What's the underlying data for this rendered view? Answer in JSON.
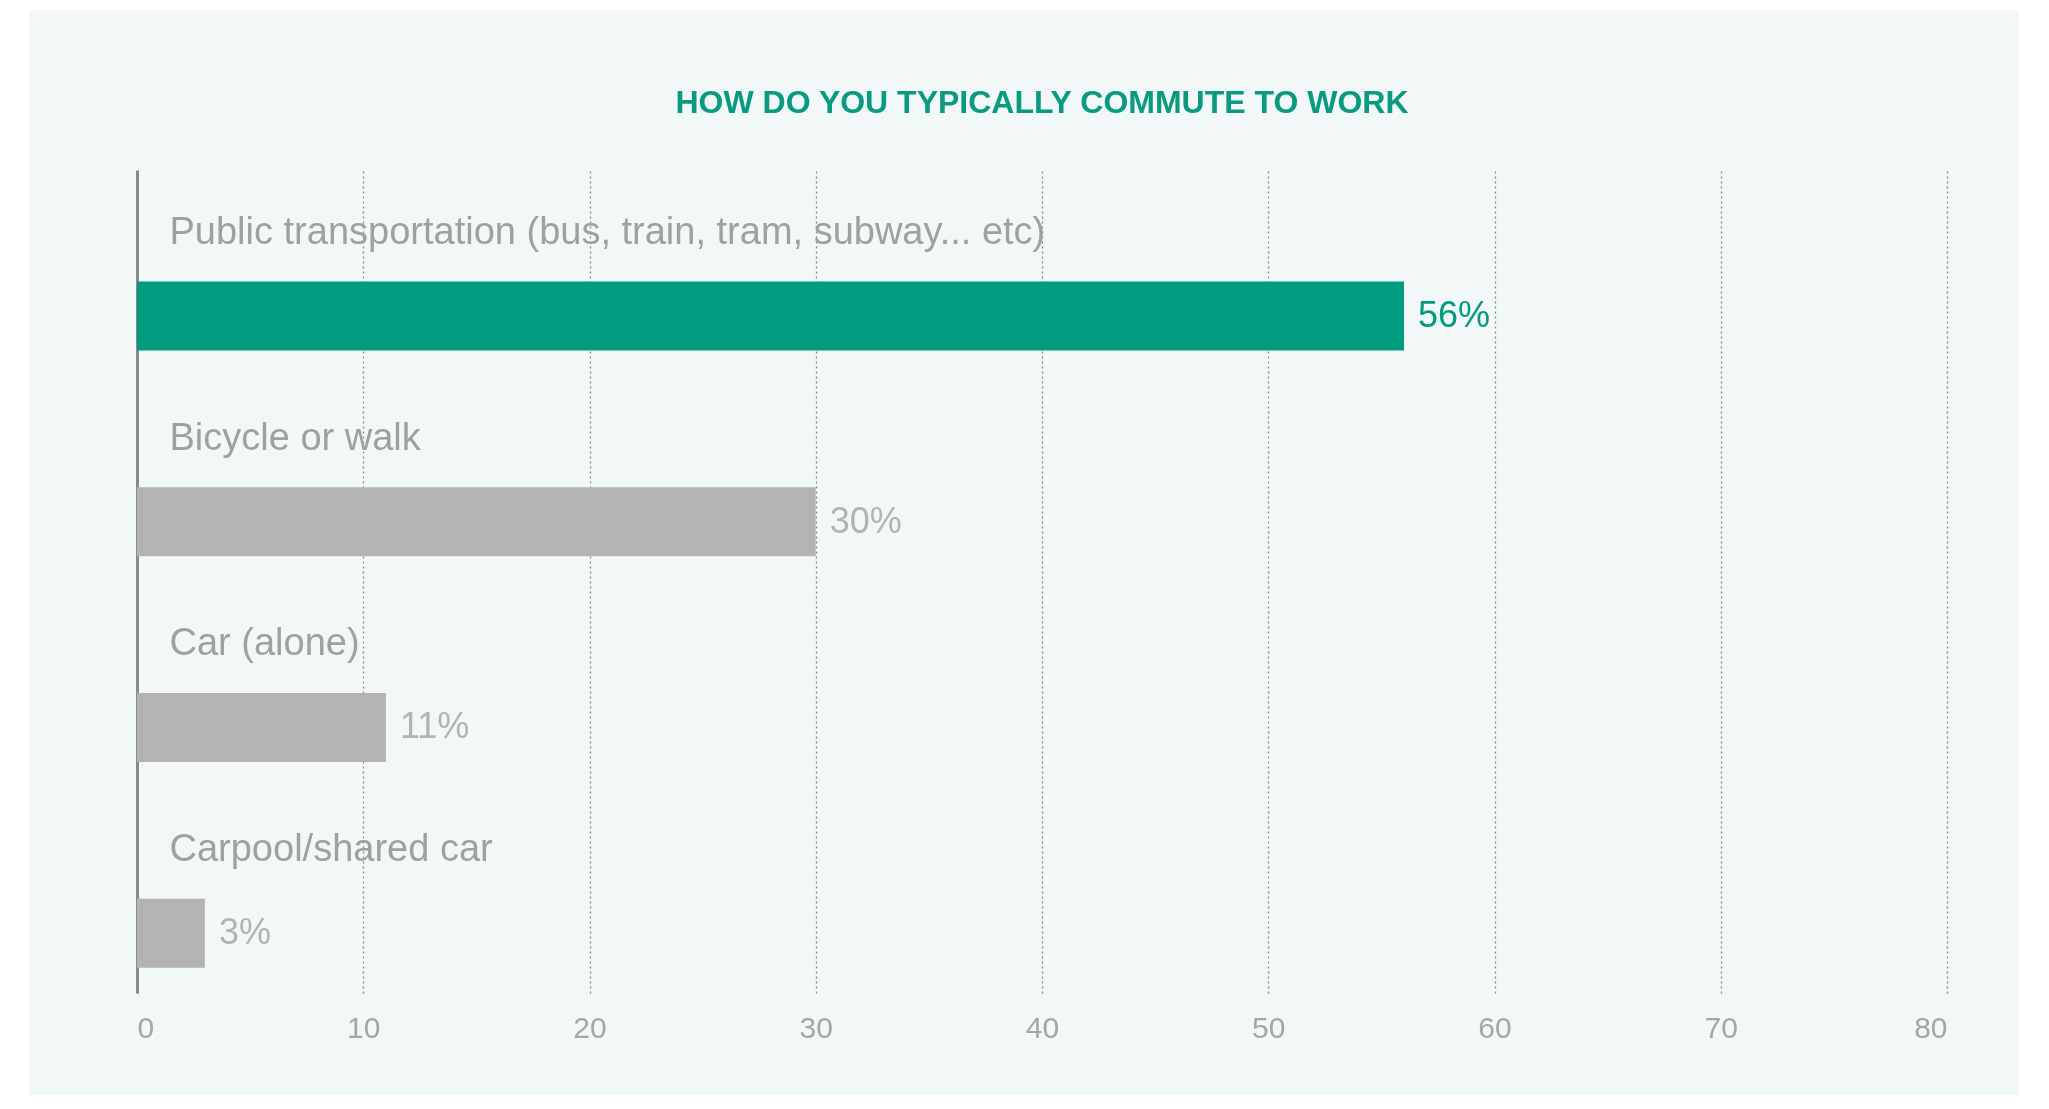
{
  "chart_data": {
    "type": "bar",
    "orientation": "horizontal",
    "title": "HOW DO YOU TYPICALLY COMMUTE TO WORK",
    "categories": [
      "Public transportation (bus, train, tram, subway... etc)",
      "Bicycle or walk",
      "Car (alone)",
      "Carpool/shared car"
    ],
    "values": [
      56,
      30,
      11,
      3
    ],
    "colors": [
      "#039b80",
      "#b3b3b3",
      "#b3b3b3",
      "#b3b3b3"
    ],
    "value_labels": [
      "56%",
      "30%",
      "11%",
      "3%"
    ],
    "xlim": [
      0,
      80
    ],
    "xticks": [
      0,
      10,
      20,
      30,
      40,
      50,
      60,
      70,
      80
    ],
    "grid": "x",
    "legend": false
  }
}
